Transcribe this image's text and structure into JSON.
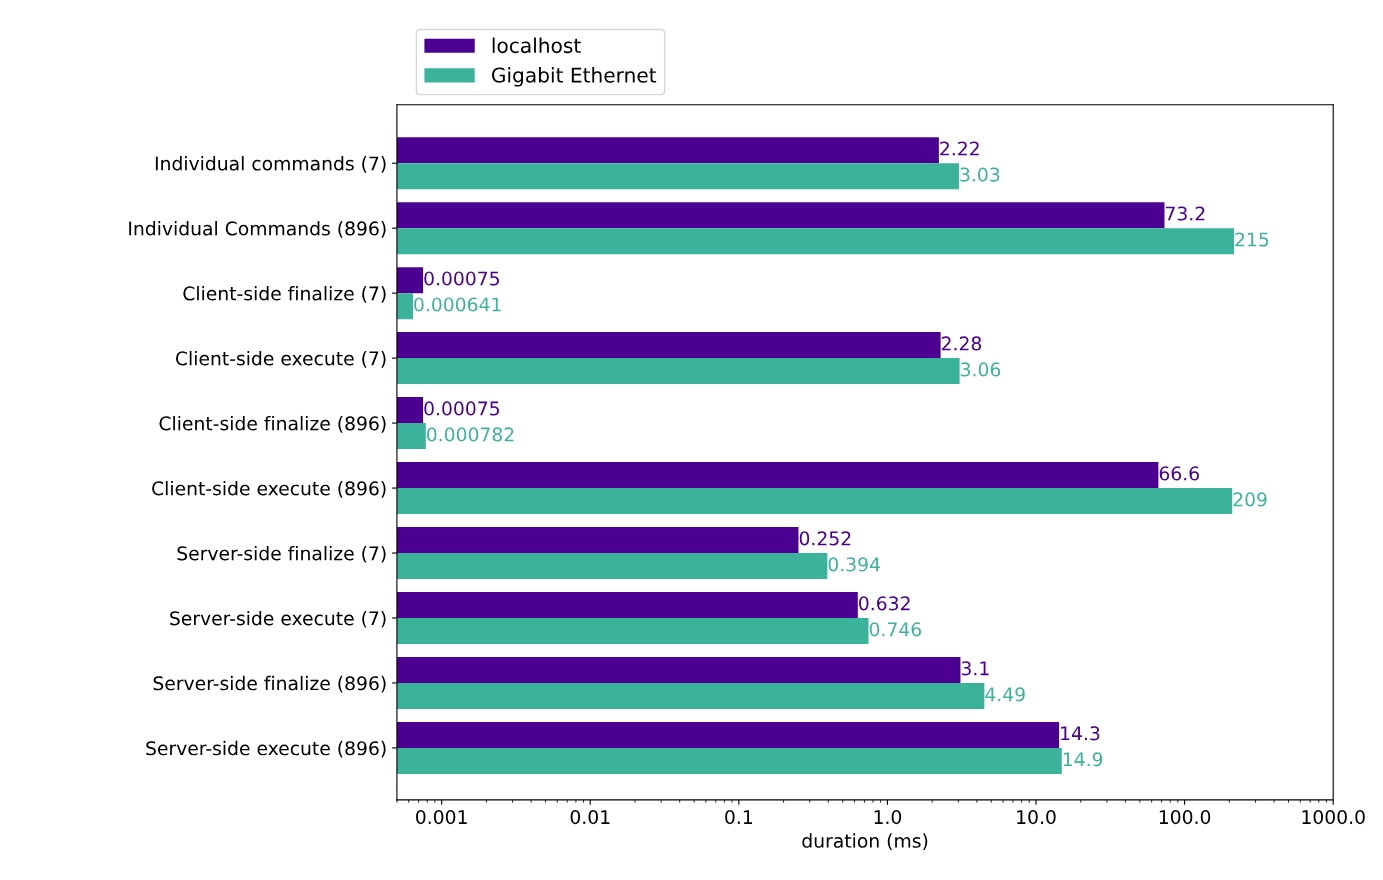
{
  "chart_data": {
    "type": "bar",
    "orientation": "horizontal",
    "xlabel": "duration (ms)",
    "categories": [
      "Individual commands (7)",
      "Individual Commands (896)",
      "Client-side finalize (7)",
      "Client-side execute (7)",
      "Client-side finalize (896)",
      "Client-side execute (896)",
      "Server-side finalize (7)",
      "Server-side execute (7)",
      "Server-side finalize (896)",
      "Server-side execute (896)"
    ],
    "series": [
      {
        "name": "localhost",
        "color": "#4b0092",
        "values": [
          2.22,
          73.2,
          0.00075,
          2.28,
          0.00075,
          66.6,
          0.252,
          0.632,
          3.1,
          14.3
        ]
      },
      {
        "name": "Gigabit Ethernet",
        "color": "#3ab39a",
        "values": [
          3.03,
          215,
          0.000641,
          3.06,
          0.000782,
          209,
          0.394,
          0.746,
          4.49,
          14.9
        ]
      }
    ],
    "log": "x",
    "xlim": [
      0.0005,
      1000
    ],
    "xticks": [
      {
        "value": 0.001,
        "label": "0.001"
      },
      {
        "value": 0.01,
        "label": "0.01"
      },
      {
        "value": 0.1,
        "label": "0.1"
      },
      {
        "value": 1,
        "label": "1.0"
      },
      {
        "value": 10,
        "label": "10.0"
      },
      {
        "value": 100,
        "label": "100.0"
      },
      {
        "value": 1000,
        "label": "1000.0"
      }
    ],
    "data_labels": true,
    "legend": "top left",
    "grid": false
  }
}
